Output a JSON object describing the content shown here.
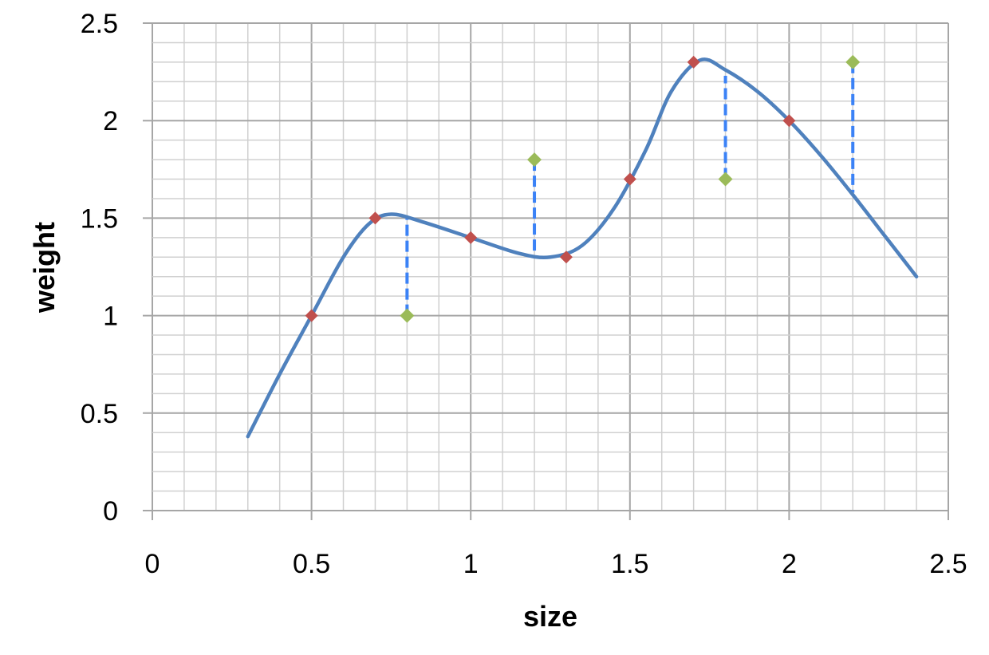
{
  "chart_data": {
    "type": "scatter",
    "title": "",
    "xlabel": "size",
    "ylabel": "weight",
    "xlim": [
      0,
      2.5
    ],
    "ylim": [
      0,
      2.5
    ],
    "xticks": [
      "0",
      "0.5",
      "1",
      "1.5",
      "2",
      "2.5"
    ],
    "yticks": [
      "0",
      "0.5",
      "1",
      "1.5",
      "2",
      "2.5"
    ],
    "grid": true,
    "minor_grid_step": 0.1,
    "colors": {
      "red_points": "#c0504d",
      "green_points": "#9bbb59",
      "curve": "#4f81bd",
      "residuals": "#3b82f6",
      "grid_major": "#a6a6a6",
      "grid_minor": "#d0d0d0"
    },
    "red_points": [
      {
        "x": 0.5,
        "y": 1.0
      },
      {
        "x": 0.7,
        "y": 1.5
      },
      {
        "x": 1.0,
        "y": 1.4
      },
      {
        "x": 1.3,
        "y": 1.3
      },
      {
        "x": 1.5,
        "y": 1.7
      },
      {
        "x": 1.7,
        "y": 2.3
      },
      {
        "x": 2.0,
        "y": 2.0
      }
    ],
    "green_points": [
      {
        "x": 0.8,
        "y": 1.0,
        "curve_y": 1.5
      },
      {
        "x": 1.2,
        "y": 1.8,
        "curve_y": 1.3
      },
      {
        "x": 1.8,
        "y": 1.7,
        "curve_y": 2.23
      },
      {
        "x": 2.2,
        "y": 2.3,
        "curve_y": 1.63
      }
    ],
    "curve": [
      [
        0.3,
        0.38
      ],
      [
        0.4,
        0.7
      ],
      [
        0.5,
        1.0
      ],
      [
        0.6,
        1.3
      ],
      [
        0.68,
        1.47
      ],
      [
        0.75,
        1.52
      ],
      [
        0.85,
        1.48
      ],
      [
        1.0,
        1.4
      ],
      [
        1.15,
        1.32
      ],
      [
        1.25,
        1.3
      ],
      [
        1.35,
        1.36
      ],
      [
        1.45,
        1.55
      ],
      [
        1.55,
        1.85
      ],
      [
        1.63,
        2.15
      ],
      [
        1.72,
        2.31
      ],
      [
        1.8,
        2.26
      ],
      [
        1.9,
        2.15
      ],
      [
        2.0,
        2.0
      ],
      [
        2.1,
        1.82
      ],
      [
        2.2,
        1.62
      ],
      [
        2.3,
        1.41
      ],
      [
        2.4,
        1.2
      ]
    ]
  }
}
